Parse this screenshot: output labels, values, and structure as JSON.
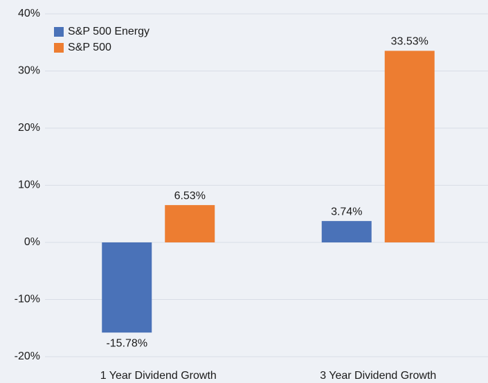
{
  "chart_data": {
    "type": "bar",
    "categories": [
      "1 Year Dividend Growth",
      "3 Year Dividend Growth"
    ],
    "series": [
      {
        "name": "S&P 500 Energy",
        "color": "#4a72b8",
        "values": [
          -15.78,
          3.74
        ],
        "value_labels": [
          "-15.78%",
          "3.74%"
        ]
      },
      {
        "name": "S&P 500",
        "color": "#ed7d31",
        "values": [
          6.53,
          33.53
        ],
        "value_labels": [
          "6.53%",
          "33.53%"
        ]
      }
    ],
    "ylim": [
      -20,
      40
    ],
    "yticks": [
      {
        "value": -20,
        "label": "-20%"
      },
      {
        "value": -10,
        "label": "-10%"
      },
      {
        "value": 0,
        "label": "0%"
      },
      {
        "value": 10,
        "label": "10%"
      },
      {
        "value": 20,
        "label": "20%"
      },
      {
        "value": 30,
        "label": "30%"
      },
      {
        "value": 40,
        "label": "40%"
      }
    ],
    "grid": true,
    "legend": "top-left"
  }
}
